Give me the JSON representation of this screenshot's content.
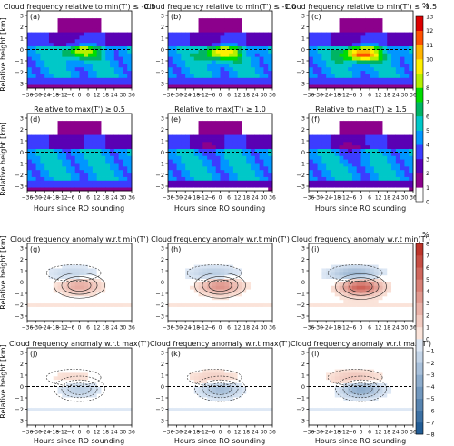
{
  "chart_data": {
    "type": "heatmap",
    "x_ticks": [
      -36,
      -30,
      -24,
      -18,
      -12,
      -6,
      0,
      6,
      12,
      18,
      24,
      30,
      36
    ],
    "y_ticks": [
      -3,
      -2,
      -1,
      0,
      1,
      2,
      3
    ],
    "xlim": [
      -36,
      36
    ],
    "ylim": [
      -3.4,
      3.4
    ],
    "xlabel": "Hours since RO sounding",
    "ylabel": "Relative height [km]",
    "colorbar_top": {
      "unit": "%",
      "ticks": [
        0,
        1,
        2,
        3,
        4,
        5,
        6,
        7,
        8,
        9,
        10,
        11,
        12,
        13
      ],
      "colors": [
        "#ffffff",
        "#8c008c",
        "#5a00b4",
        "#3c3cff",
        "#0096ff",
        "#00c8c8",
        "#00b464",
        "#00dc00",
        "#b4f000",
        "#fff000",
        "#ffb400",
        "#ff5000",
        "#dc0000",
        "#ffffff"
      ]
    },
    "colorbar_bottom": {
      "unit": "%",
      "ticks": [
        -8,
        -7,
        -6,
        -5,
        -4,
        -3,
        -2,
        -1,
        0,
        1,
        2,
        3,
        4,
        5,
        6,
        7,
        8
      ]
    },
    "panels": [
      {
        "label": "(a)",
        "title": "Cloud frequency relative to min(T') ≤ -0.5",
        "kind": "freq",
        "peak": 9,
        "peak_x": 0,
        "peak_y": -0.2
      },
      {
        "label": "(b)",
        "title": "Cloud frequency relative to min(T') ≤ -1.0",
        "kind": "freq",
        "peak": 10,
        "peak_x": 0,
        "peak_y": -0.3
      },
      {
        "label": "(c)",
        "title": "Cloud frequency relative to min(T') ≤ -1.5",
        "kind": "freq",
        "peak": 12,
        "peak_x": 0,
        "peak_y": -0.4
      },
      {
        "label": "(d)",
        "title": "Relative to max(T') ≥ 0.5",
        "kind": "freq",
        "peak": 5,
        "peak_x": -6,
        "peak_y": 0.1
      },
      {
        "label": "(e)",
        "title": "Relative to max(T') ≥ 1.0",
        "kind": "freq",
        "peak": 4.5,
        "peak_x": -6,
        "peak_y": 0.1
      },
      {
        "label": "(f)",
        "title": "Relative to max(T') ≥ 1.5",
        "kind": "freq",
        "peak": 4,
        "peak_x": -6,
        "peak_y": 0.1
      },
      {
        "label": "(g)",
        "title": "Cloud frequency anomaly w.r.t min(T')",
        "kind": "anom",
        "peak": 3,
        "peak_x": 0,
        "peak_y": -0.3
      },
      {
        "label": "(h)",
        "title": "Cloud frequency anomaly w.r.t min(T')",
        "kind": "anom",
        "peak": 4,
        "peak_x": 0,
        "peak_y": -0.3
      },
      {
        "label": "(i)",
        "title": "Cloud frequency anomaly w.r.t min(T')",
        "kind": "anom",
        "peak": 6,
        "peak_x": 0,
        "peak_y": -0.4
      },
      {
        "label": "(j)",
        "title": "Cloud frequency anomaly w.r.t max(T')",
        "kind": "anom",
        "peak": -2,
        "peak_x": 0,
        "peak_y": -0.2
      },
      {
        "label": "(k)",
        "title": "Cloud frequency anomaly w.r.t max(T')",
        "kind": "anom",
        "peak": -3,
        "peak_x": 0,
        "peak_y": -0.2
      },
      {
        "label": "(l)",
        "title": "Cloud frequency anomaly w.r.t max(T')",
        "kind": "anom",
        "peak": -4,
        "peak_x": 0,
        "peak_y": -0.2
      }
    ]
  }
}
